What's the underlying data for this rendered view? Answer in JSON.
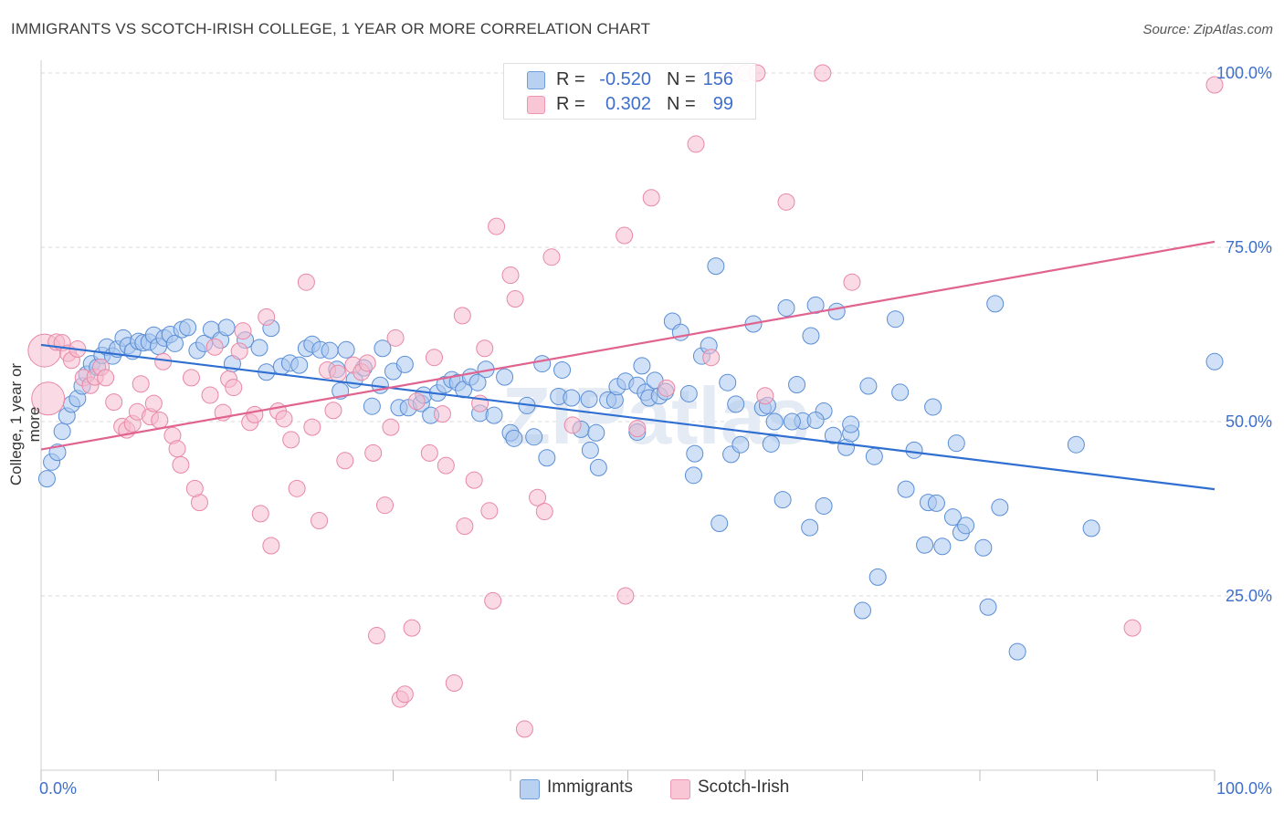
{
  "title": "IMMIGRANTS VS SCOTCH-IRISH COLLEGE, 1 YEAR OR MORE CORRELATION CHART",
  "source": "Source: ZipAtlas.com",
  "watermark": "ZIPatlas",
  "legend": {
    "rows": [
      {
        "r_label": "R =",
        "r_value": "-0.520",
        "n_label": "N =",
        "n_value": "156"
      },
      {
        "r_label": "R =",
        "r_value": "0.302",
        "n_label": "N =",
        "n_value": "99"
      }
    ],
    "bottom": [
      "Immigrants",
      "Scotch-Irish"
    ]
  },
  "colors": {
    "blue_fill": "#a9c6ee",
    "blue_stroke": "#5a8ed6",
    "blue_line": "#2f6fd1",
    "pink_fill": "#f6bccd",
    "pink_stroke": "#e888a6",
    "pink_line": "#e06390",
    "tick_text": "#3e6fcc",
    "grid": "#d9d9d9"
  },
  "chart_data": {
    "type": "scatter",
    "title": "IMMIGRANTS VS SCOTCH-IRISH COLLEGE, 1 YEAR OR MORE CORRELATION CHART",
    "xlabel": "",
    "ylabel": "College, 1 year or more",
    "xlim": [
      0,
      100
    ],
    "ylim": [
      0,
      101
    ],
    "x_tick_labels": [
      "0.0%",
      "100.0%"
    ],
    "y_ticks": [
      25,
      50,
      75,
      100
    ],
    "y_tick_labels": [
      "25.0%",
      "50.0%",
      "75.0%",
      "100.0%"
    ],
    "grid": "horizontal dashed",
    "legend_position": "top-center",
    "series": [
      {
        "name": "Immigrants",
        "r": -0.52,
        "n": 156,
        "trend": {
          "x": [
            0,
            100
          ],
          "y": [
            61.0,
            40.3
          ]
        },
        "points": [
          [
            0.5,
            41.8
          ],
          [
            0.9,
            44.2
          ],
          [
            1.4,
            45.6
          ],
          [
            1.8,
            48.6
          ],
          [
            2.2,
            50.8
          ],
          [
            2.6,
            52.5
          ],
          [
            3.1,
            53.3
          ],
          [
            3.5,
            55.1
          ],
          [
            3.9,
            56.8
          ],
          [
            4.3,
            58.3
          ],
          [
            4.8,
            57.8
          ],
          [
            5.2,
            59.5
          ],
          [
            5.6,
            60.7
          ],
          [
            6.1,
            59.4
          ],
          [
            6.5,
            60.4
          ],
          [
            7.0,
            62.0
          ],
          [
            7.4,
            60.9
          ],
          [
            7.8,
            60.1
          ],
          [
            8.3,
            61.5
          ],
          [
            8.7,
            61.3
          ],
          [
            9.2,
            61.4
          ],
          [
            9.6,
            62.4
          ],
          [
            10.0,
            60.8
          ],
          [
            10.5,
            62.0
          ],
          [
            11.0,
            62.5
          ],
          [
            11.4,
            61.2
          ],
          [
            12.0,
            63.2
          ],
          [
            12.5,
            63.5
          ],
          [
            13.3,
            60.2
          ],
          [
            13.9,
            61.2
          ],
          [
            14.5,
            63.2
          ],
          [
            15.3,
            61.7
          ],
          [
            15.8,
            63.5
          ],
          [
            16.3,
            58.3
          ],
          [
            17.4,
            61.7
          ],
          [
            18.6,
            60.6
          ],
          [
            19.2,
            57.1
          ],
          [
            19.6,
            63.4
          ],
          [
            20.5,
            57.9
          ],
          [
            21.2,
            58.4
          ],
          [
            22.0,
            58.1
          ],
          [
            22.6,
            60.5
          ],
          [
            23.1,
            61.1
          ],
          [
            23.8,
            60.3
          ],
          [
            24.6,
            60.2
          ],
          [
            25.2,
            57.5
          ],
          [
            25.5,
            54.4
          ],
          [
            26.0,
            60.3
          ],
          [
            26.7,
            56.0
          ],
          [
            27.5,
            57.7
          ],
          [
            28.2,
            52.2
          ],
          [
            28.9,
            55.2
          ],
          [
            29.1,
            60.5
          ],
          [
            30.0,
            57.2
          ],
          [
            30.5,
            52.0
          ],
          [
            31.0,
            58.2
          ],
          [
            31.3,
            52.0
          ],
          [
            32.4,
            52.6
          ],
          [
            32.6,
            53.8
          ],
          [
            33.2,
            50.9
          ],
          [
            33.8,
            54.1
          ],
          [
            34.4,
            55.3
          ],
          [
            35.0,
            56.0
          ],
          [
            35.5,
            55.6
          ],
          [
            36.0,
            54.6
          ],
          [
            36.6,
            56.4
          ],
          [
            37.2,
            55.6
          ],
          [
            37.4,
            51.2
          ],
          [
            37.9,
            57.5
          ],
          [
            38.6,
            50.9
          ],
          [
            39.5,
            56.4
          ],
          [
            40.0,
            48.4
          ],
          [
            40.3,
            47.6
          ],
          [
            41.4,
            52.3
          ],
          [
            42.0,
            47.8
          ],
          [
            42.7,
            58.3
          ],
          [
            43.1,
            44.8
          ],
          [
            44.1,
            53.6
          ],
          [
            44.4,
            57.4
          ],
          [
            45.2,
            53.4
          ],
          [
            46.0,
            48.9
          ],
          [
            46.7,
            53.2
          ],
          [
            46.8,
            45.9
          ],
          [
            47.3,
            48.4
          ],
          [
            47.5,
            43.4
          ],
          [
            48.3,
            53.1
          ],
          [
            48.9,
            53.1
          ],
          [
            49.1,
            55.0
          ],
          [
            49.8,
            55.8
          ],
          [
            50.8,
            55.2
          ],
          [
            50.8,
            48.5
          ],
          [
            51.2,
            58.0
          ],
          [
            51.5,
            54.2
          ],
          [
            51.8,
            53.4
          ],
          [
            52.3,
            55.9
          ],
          [
            52.7,
            53.7
          ],
          [
            53.2,
            54.3
          ],
          [
            53.8,
            64.4
          ],
          [
            54.5,
            62.8
          ],
          [
            55.2,
            54.0
          ],
          [
            55.6,
            42.3
          ],
          [
            55.7,
            45.4
          ],
          [
            56.3,
            59.4
          ],
          [
            56.9,
            60.9
          ],
          [
            57.5,
            72.3
          ],
          [
            57.8,
            35.4
          ],
          [
            58.5,
            55.6
          ],
          [
            58.8,
            45.3
          ],
          [
            59.2,
            52.5
          ],
          [
            59.6,
            46.7
          ],
          [
            60.7,
            64.0
          ],
          [
            61.5,
            52.0
          ],
          [
            61.9,
            52.3
          ],
          [
            62.2,
            46.8
          ],
          [
            62.5,
            50.0
          ],
          [
            63.2,
            38.8
          ],
          [
            63.5,
            66.3
          ],
          [
            64.4,
            55.3
          ],
          [
            64.9,
            50.1
          ],
          [
            65.5,
            34.8
          ],
          [
            65.6,
            62.3
          ],
          [
            66.0,
            66.7
          ],
          [
            66.7,
            51.5
          ],
          [
            66.7,
            37.9
          ],
          [
            67.5,
            48.0
          ],
          [
            67.8,
            65.8
          ],
          [
            68.6,
            46.3
          ],
          [
            69.0,
            48.3
          ],
          [
            70.5,
            55.1
          ],
          [
            71.0,
            45.0
          ],
          [
            71.3,
            27.7
          ],
          [
            72.8,
            64.7
          ],
          [
            73.2,
            54.2
          ],
          [
            73.7,
            40.3
          ],
          [
            74.4,
            45.9
          ],
          [
            75.6,
            38.4
          ],
          [
            75.3,
            32.3
          ],
          [
            76.0,
            52.1
          ],
          [
            76.3,
            38.3
          ],
          [
            76.8,
            32.1
          ],
          [
            77.7,
            36.3
          ],
          [
            78.0,
            46.9
          ],
          [
            78.4,
            34.1
          ],
          [
            78.8,
            35.1
          ],
          [
            80.3,
            31.9
          ],
          [
            80.7,
            23.4
          ],
          [
            81.3,
            66.9
          ],
          [
            81.7,
            37.7
          ],
          [
            83.2,
            17.0
          ],
          [
            88.2,
            46.7
          ],
          [
            89.5,
            34.7
          ],
          [
            100.0,
            58.6
          ],
          [
            64.0,
            50.0
          ],
          [
            66.0,
            50.2
          ],
          [
            69.0,
            49.6
          ],
          [
            70.0,
            22.9
          ]
        ]
      },
      {
        "name": "Scotch-Irish",
        "r": 0.302,
        "n": 99,
        "trend": {
          "x": [
            0,
            100
          ],
          "y": [
            46.0,
            75.8
          ]
        },
        "points": [
          [
            0.3,
            60.2
          ],
          [
            0.6,
            53.3
          ],
          [
            1.3,
            61.4
          ],
          [
            1.8,
            61.3
          ],
          [
            2.3,
            59.8
          ],
          [
            2.6,
            58.8
          ],
          [
            3.1,
            60.4
          ],
          [
            3.6,
            56.3
          ],
          [
            4.2,
            55.2
          ],
          [
            4.6,
            56.4
          ],
          [
            5.1,
            57.8
          ],
          [
            5.5,
            56.3
          ],
          [
            6.2,
            52.8
          ],
          [
            6.9,
            49.3
          ],
          [
            7.3,
            48.8
          ],
          [
            7.8,
            49.7
          ],
          [
            8.2,
            51.4
          ],
          [
            8.5,
            55.4
          ],
          [
            9.3,
            50.7
          ],
          [
            9.6,
            52.6
          ],
          [
            10.1,
            50.2
          ],
          [
            10.4,
            58.6
          ],
          [
            11.2,
            48.0
          ],
          [
            11.6,
            46.1
          ],
          [
            11.9,
            43.8
          ],
          [
            12.8,
            56.3
          ],
          [
            13.5,
            38.4
          ],
          [
            13.1,
            40.4
          ],
          [
            14.4,
            53.8
          ],
          [
            14.8,
            60.7
          ],
          [
            15.5,
            51.3
          ],
          [
            16.0,
            56.1
          ],
          [
            16.4,
            54.9
          ],
          [
            16.9,
            60.1
          ],
          [
            17.2,
            63.0
          ],
          [
            17.8,
            49.9
          ],
          [
            18.2,
            51.0
          ],
          [
            18.7,
            36.8
          ],
          [
            19.2,
            65.0
          ],
          [
            19.6,
            32.2
          ],
          [
            20.2,
            51.5
          ],
          [
            20.7,
            50.4
          ],
          [
            21.3,
            47.4
          ],
          [
            21.8,
            40.4
          ],
          [
            22.6,
            70.0
          ],
          [
            23.1,
            49.2
          ],
          [
            23.7,
            35.8
          ],
          [
            24.4,
            57.4
          ],
          [
            24.9,
            51.6
          ],
          [
            25.3,
            56.9
          ],
          [
            25.9,
            44.4
          ],
          [
            26.6,
            58.1
          ],
          [
            27.3,
            57.1
          ],
          [
            27.8,
            58.4
          ],
          [
            28.3,
            45.5
          ],
          [
            28.6,
            19.3
          ],
          [
            29.3,
            38.0
          ],
          [
            29.8,
            49.2
          ],
          [
            30.2,
            62.0
          ],
          [
            30.6,
            10.2
          ],
          [
            31.0,
            10.9
          ],
          [
            31.6,
            20.4
          ],
          [
            32.0,
            52.9
          ],
          [
            33.1,
            45.5
          ],
          [
            33.5,
            59.2
          ],
          [
            34.2,
            51.1
          ],
          [
            34.5,
            43.7
          ],
          [
            35.2,
            12.5
          ],
          [
            35.9,
            65.2
          ],
          [
            36.1,
            35.0
          ],
          [
            36.9,
            41.6
          ],
          [
            37.4,
            52.6
          ],
          [
            37.8,
            60.5
          ],
          [
            38.2,
            37.2
          ],
          [
            38.5,
            24.3
          ],
          [
            38.8,
            78.0
          ],
          [
            40.0,
            71.0
          ],
          [
            40.4,
            67.6
          ],
          [
            41.2,
            5.9
          ],
          [
            42.3,
            39.1
          ],
          [
            42.9,
            37.1
          ],
          [
            43.5,
            73.6
          ],
          [
            49.7,
            76.7
          ],
          [
            49.8,
            25.0
          ],
          [
            50.8,
            49.0
          ],
          [
            52.0,
            82.1
          ],
          [
            53.3,
            54.8
          ],
          [
            55.8,
            89.8
          ],
          [
            57.1,
            59.2
          ],
          [
            58.5,
            100.0
          ],
          [
            60.0,
            100.0
          ],
          [
            61.0,
            100.0
          ],
          [
            61.7,
            53.7
          ],
          [
            63.5,
            81.5
          ],
          [
            66.6,
            100.0
          ],
          [
            69.1,
            70.0
          ],
          [
            93.0,
            20.4
          ],
          [
            100.0,
            98.3
          ],
          [
            45.3,
            49.5
          ]
        ]
      }
    ]
  }
}
